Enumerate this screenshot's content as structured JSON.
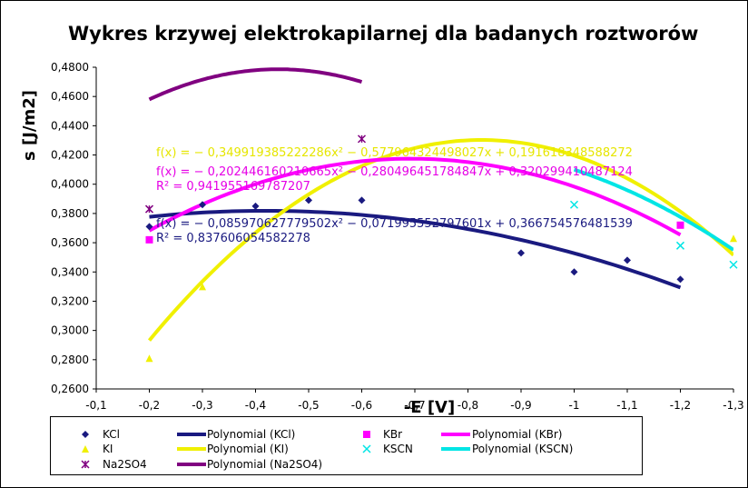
{
  "chart_data": {
    "type": "scatter",
    "title": "Wykres krzywej elektrokapilarnej dla badanych roztworów",
    "xlabel": "-E [V]",
    "ylabel": "s [J/m2]",
    "xlim": [
      -0.1,
      -1.3
    ],
    "ylim": [
      0.26,
      0.48
    ],
    "x_ticks": [
      "-0,1",
      "-0,2",
      "-0,3",
      "-0,4",
      "-0,5",
      "-0,6",
      "-0,7",
      "-0,8",
      "-0,9",
      "-1",
      "-1,1",
      "-1,2",
      "-1,3"
    ],
    "x_tick_values": [
      -0.1,
      -0.2,
      -0.3,
      -0.4,
      -0.5,
      -0.6,
      -0.7,
      -0.8,
      -0.9,
      -1.0,
      -1.1,
      -1.2,
      -1.3
    ],
    "y_ticks": [
      "0,2600",
      "0,2800",
      "0,3000",
      "0,3200",
      "0,3400",
      "0,3600",
      "0,3800",
      "0,4000",
      "0,4200",
      "0,4400",
      "0,4600",
      "0,4800"
    ],
    "y_tick_values": [
      0.26,
      0.28,
      0.3,
      0.32,
      0.34,
      0.36,
      0.38,
      0.4,
      0.42,
      0.44,
      0.46,
      0.48
    ],
    "grid": false,
    "legend_placement": "bottom",
    "series": [
      {
        "name": "KCl",
        "color": "#1a1a80",
        "marker": "diamond",
        "x": [
          -0.2,
          -0.3,
          -0.4,
          -0.5,
          -0.6,
          -0.9,
          -1.0,
          -1.1,
          -1.2
        ],
        "y": [
          0.371,
          0.386,
          0.385,
          0.389,
          0.389,
          0.353,
          0.34,
          0.348,
          0.335
        ],
        "fit": {
          "a": -0.085970627779502,
          "b": -0.071995552797601,
          "c": 0.366754576481539
        }
      },
      {
        "name": "KI",
        "color": "#f0f000",
        "marker": "triangle",
        "x": [
          -0.2,
          -0.3,
          -1.3
        ],
        "y": [
          0.281,
          0.33,
          0.363
        ],
        "fit": {
          "a": -0.349919385222286,
          "b": -0.577964324498027,
          "c": 0.191618348588272
        }
      },
      {
        "name": "Na2SO4",
        "color": "#800080",
        "marker": "star",
        "x": [
          -0.2,
          -0.6
        ],
        "y": [
          0.383,
          0.431
        ],
        "fit": {
          "a": -0.35,
          "b": -0.31,
          "c": 0.41
        }
      },
      {
        "name": "KBr",
        "color": "#ff00ff",
        "marker": "square",
        "x": [
          -0.2,
          -1.2
        ],
        "y": [
          0.362,
          0.372
        ],
        "fit": {
          "a": -0.202446160210665,
          "b": -0.280496451784847,
          "c": 0.320299410487124
        }
      },
      {
        "name": "KSCN",
        "color": "#00e5e5",
        "marker": "cross",
        "x": [
          -1.0,
          -1.2,
          -1.3
        ],
        "y": [
          0.386,
          0.358,
          0.345
        ],
        "fit": {
          "a": -0.21,
          "b": -0.3,
          "c": 0.32
        }
      }
    ],
    "legend": [
      {
        "label": "KCl",
        "type": "marker",
        "series": "KCl"
      },
      {
        "label": "Polynomial (KCl)",
        "type": "line",
        "series": "KCl"
      },
      {
        "label": "KBr",
        "type": "marker",
        "series": "KBr"
      },
      {
        "label": "Polynomial (KBr)",
        "type": "line",
        "series": "KBr"
      },
      {
        "label": "KI",
        "type": "marker",
        "series": "KI"
      },
      {
        "label": "Polynomial (KI)",
        "type": "line",
        "series": "KI"
      },
      {
        "label": "KSCN",
        "type": "marker",
        "series": "KSCN"
      },
      {
        "label": "Polynomial (KSCN)",
        "type": "line",
        "series": "KSCN"
      },
      {
        "label": "Na2SO4",
        "type": "marker",
        "series": "Na2SO4"
      },
      {
        "label": "Polynomial (Na2SO4)",
        "type": "line",
        "series": "Na2SO4"
      }
    ],
    "annotations": [
      {
        "text": "f(x) = − 0,349919385222286x² − 0,577964324498027x + 0,191618348588272",
        "color": "#e6e600"
      },
      {
        "text": "f(x) = − 0,202446160210665x² − 0,280496451784847x + 0,320299410487124",
        "color": "#e600e6"
      },
      {
        "text": "R² = 0,941955169787207",
        "color": "#e600e6"
      },
      {
        "text": "f(x) = − 0,085970627779502x² − 0,071995552797601x + 0,366754576481539",
        "color": "#1a1a80"
      },
      {
        "text": "R² = 0,837606054582278",
        "color": "#1a1a80"
      }
    ]
  }
}
